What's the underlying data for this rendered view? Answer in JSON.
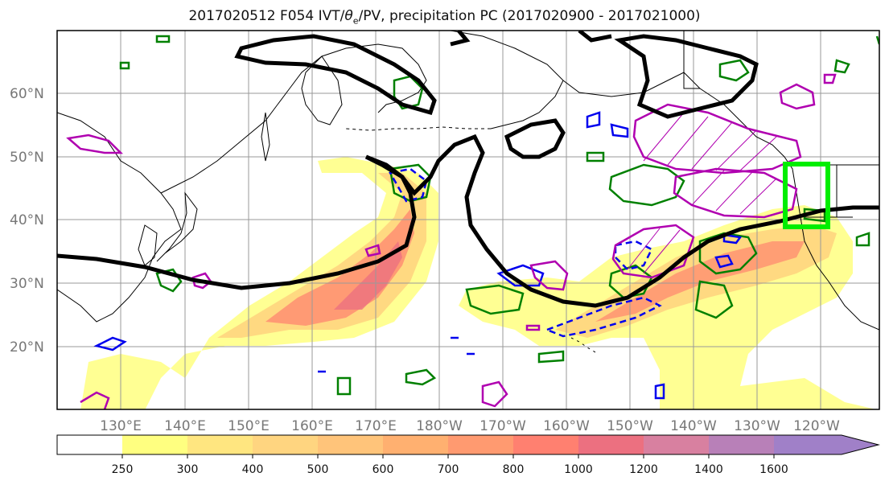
{
  "title": {
    "prefix": "2017020512 F054 IVT/",
    "theta": "θ",
    "theta_sub": "e",
    "suffix": "/PV, precipitation PC (2017020900 - 2017021000)"
  },
  "lat_labels": [
    "60°N",
    "50°N",
    "40°N",
    "30°N",
    "20°N"
  ],
  "lon_labels": [
    "130°E",
    "140°E",
    "150°E",
    "160°E",
    "170°E",
    "180°W",
    "170°W",
    "160°W",
    "150°W",
    "140°W",
    "130°W",
    "120°W"
  ],
  "colorbar": {
    "ticks": [
      "250",
      "300",
      "400",
      "500",
      "600",
      "700",
      "800",
      "1000",
      "1200",
      "1400",
      "1600"
    ],
    "colors": [
      "#ffffff",
      "#ffff80",
      "#ffe680",
      "#ffd580",
      "#ffc47a",
      "#ffb070",
      "#ff9a70",
      "#ff8070",
      "#ec7080",
      "#d880a0",
      "#b880b8",
      "#a080c8"
    ]
  },
  "colors": {
    "jet_contour": "#000000",
    "green_contour": "#008000",
    "blue_contour": "#0000ee",
    "magenta_contour": "#b000b0",
    "target_box": "#00ee00"
  }
}
